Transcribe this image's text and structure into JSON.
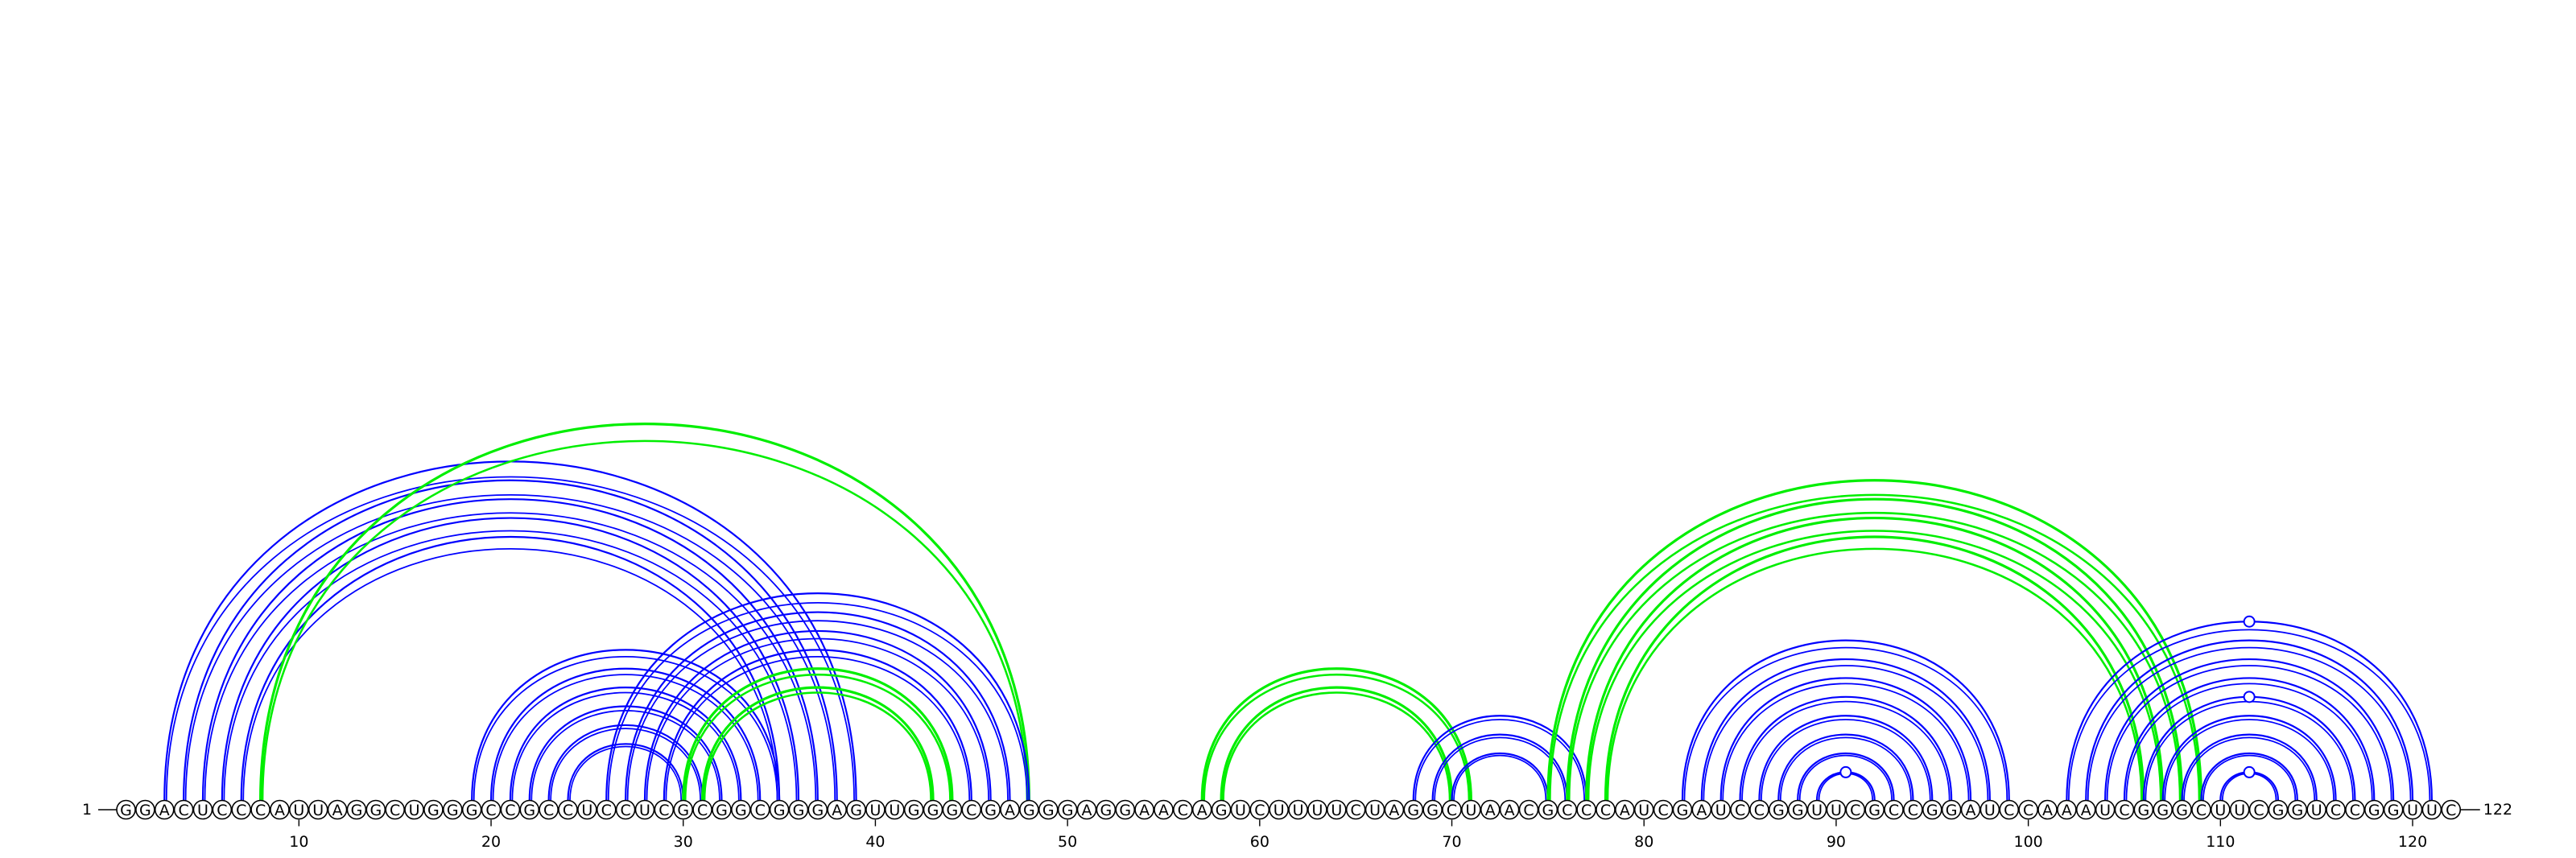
{
  "diagram": {
    "sequence": "GGACUCCCAUUAGGCUGGGCCGCCUCCUCGCGGCGGGAGUUGGGCGAGGGAGGAACAGUCUUUUCUAGGCUAACGCCCAUCGAUCCGGUUCGCCGGAUCCAAAUCGGGCUUCGGUCCGGUUC",
    "start_label": "1",
    "end_label": "122",
    "ticks": [
      {
        "position": 10,
        "label": "10"
      },
      {
        "position": 20,
        "label": "20"
      },
      {
        "position": 30,
        "label": "30"
      },
      {
        "position": 40,
        "label": "40"
      },
      {
        "position": 50,
        "label": "50"
      },
      {
        "position": 60,
        "label": "60"
      },
      {
        "position": 70,
        "label": "70"
      },
      {
        "position": 80,
        "label": "80"
      },
      {
        "position": 90,
        "label": "90"
      },
      {
        "position": 100,
        "label": "100"
      },
      {
        "position": 110,
        "label": "110"
      },
      {
        "position": 120,
        "label": "120"
      }
    ],
    "colors": {
      "blue": "#0000ff",
      "green": "#00ee00",
      "backbone": "#000000"
    },
    "arcs": [
      {
        "i": 3,
        "j": 39,
        "color": "blue"
      },
      {
        "i": 4,
        "j": 38,
        "color": "blue"
      },
      {
        "i": 5,
        "j": 37,
        "color": "blue"
      },
      {
        "i": 6,
        "j": 36,
        "color": "blue"
      },
      {
        "i": 7,
        "j": 35,
        "color": "blue"
      },
      {
        "i": 8,
        "j": 48,
        "color": "green"
      },
      {
        "i": 19,
        "j": 35,
        "color": "blue"
      },
      {
        "i": 20,
        "j": 34,
        "color": "blue"
      },
      {
        "i": 21,
        "j": 33,
        "color": "blue"
      },
      {
        "i": 22,
        "j": 32,
        "color": "blue"
      },
      {
        "i": 23,
        "j": 31,
        "color": "blue"
      },
      {
        "i": 24,
        "j": 30,
        "color": "blue"
      },
      {
        "i": 26,
        "j": 48,
        "color": "blue"
      },
      {
        "i": 27,
        "j": 47,
        "color": "blue"
      },
      {
        "i": 28,
        "j": 46,
        "color": "blue"
      },
      {
        "i": 29,
        "j": 45,
        "color": "blue"
      },
      {
        "i": 30,
        "j": 44,
        "color": "green"
      },
      {
        "i": 31,
        "j": 43,
        "color": "green"
      },
      {
        "i": 57,
        "j": 71,
        "color": "green"
      },
      {
        "i": 58,
        "j": 70,
        "color": "green"
      },
      {
        "i": 68,
        "j": 77,
        "color": "blue"
      },
      {
        "i": 69,
        "j": 76,
        "color": "blue"
      },
      {
        "i": 70,
        "j": 75,
        "color": "blue"
      },
      {
        "i": 75,
        "j": 109,
        "color": "green"
      },
      {
        "i": 76,
        "j": 108,
        "color": "green"
      },
      {
        "i": 77,
        "j": 107,
        "color": "green"
      },
      {
        "i": 78,
        "j": 106,
        "color": "green"
      },
      {
        "i": 82,
        "j": 99,
        "color": "blue"
      },
      {
        "i": 83,
        "j": 98,
        "color": "blue"
      },
      {
        "i": 84,
        "j": 97,
        "color": "blue"
      },
      {
        "i": 85,
        "j": 96,
        "color": "blue"
      },
      {
        "i": 86,
        "j": 95,
        "color": "blue"
      },
      {
        "i": 87,
        "j": 94,
        "color": "blue"
      },
      {
        "i": 88,
        "j": 93,
        "color": "blue"
      },
      {
        "i": 89,
        "j": 92,
        "color": "blue"
      },
      {
        "i": 102,
        "j": 121,
        "color": "blue"
      },
      {
        "i": 103,
        "j": 120,
        "color": "blue"
      },
      {
        "i": 104,
        "j": 119,
        "color": "blue"
      },
      {
        "i": 105,
        "j": 118,
        "color": "blue"
      },
      {
        "i": 106,
        "j": 117,
        "color": "blue"
      },
      {
        "i": 107,
        "j": 116,
        "color": "blue"
      },
      {
        "i": 108,
        "j": 115,
        "color": "blue"
      },
      {
        "i": 109,
        "j": 114,
        "color": "blue"
      },
      {
        "i": 110,
        "j": 113,
        "color": "blue"
      }
    ],
    "loop_markers": [
      {
        "center": 90.5,
        "arc_span": 3
      },
      {
        "center": 111.5,
        "arc_span": 3
      },
      {
        "center": 111.5,
        "arc_span": 11
      },
      {
        "center": 111.5,
        "arc_span": 19
      }
    ]
  }
}
